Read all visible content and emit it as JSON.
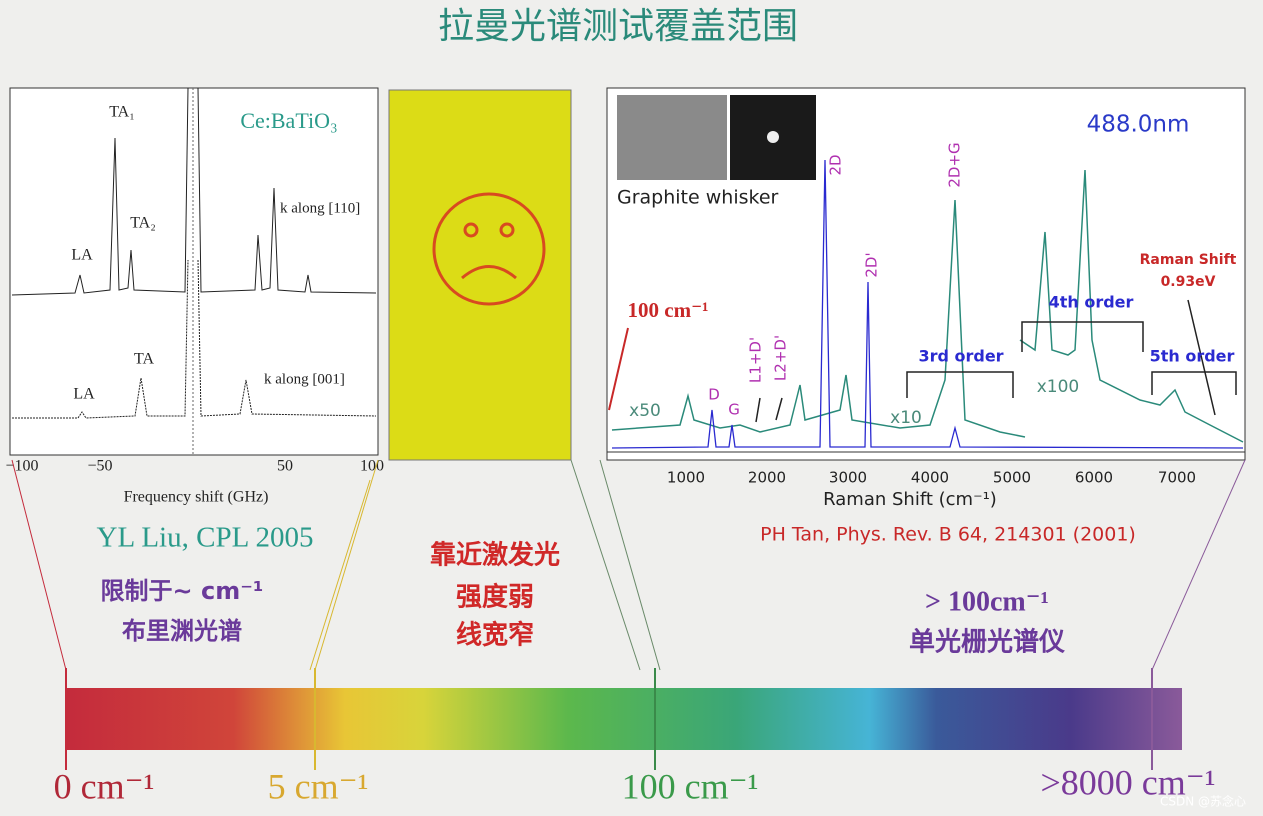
{
  "title": "拉曼光谱测试覆盖范围",
  "brillouin_panel": {
    "peaks": {
      "ta1": "TA₁",
      "ta2": "TA₂",
      "la_top": "LA",
      "ta_bottom": "TA",
      "la_bottom": "LA"
    },
    "material": "Ce:BaTiO₃",
    "traces": {
      "top": "k along [110]",
      "bottom": "k along [001]"
    },
    "x_ticks": [
      "−100",
      "−50",
      "50",
      "100"
    ],
    "x_axis_label": "Frequency shift (GHz)",
    "citation": "YL Liu, CPL 2005"
  },
  "brillouin_note": [
    "限制于~ cm⁻¹",
    "布里渊光谱"
  ],
  "center_note": [
    "靠近激发光",
    "强度弱",
    "线宽窄"
  ],
  "raman_panel": {
    "inset_caption": "Graphite whisker",
    "wavelength": "488.0nm",
    "peaks": {
      "d": "D",
      "g": "G",
      "l1": "L1+D'",
      "l2": "L2+D'",
      "two_d": "2D",
      "two_d_prime": "2D'",
      "two_d_g": "2D+G"
    },
    "scales": {
      "x50": "x50",
      "x10": "x10",
      "x100": "x100"
    },
    "orders": {
      "third": "3rd order",
      "fourth": "4th order",
      "fifth": "5th order"
    },
    "shift_note": [
      "Raman Shift",
      "0.93eV"
    ],
    "cutoff": "100 cm⁻¹",
    "x_ticks": [
      "1000",
      "2000",
      "3000",
      "4000",
      "5000",
      "6000",
      "7000"
    ],
    "x_axis_label": "Raman Shift (cm⁻¹)",
    "citation": "PH Tan, Phys. Rev. B 64, 214301 (2001)"
  },
  "raman_note": [
    "> 100cm⁻¹",
    "单光栅光谱仪"
  ],
  "scale_labels": [
    "0 cm⁻¹",
    "5 cm⁻¹",
    "100 cm⁻¹",
    ">8000 cm⁻¹"
  ],
  "watermark": "CSDN @苏念心"
}
